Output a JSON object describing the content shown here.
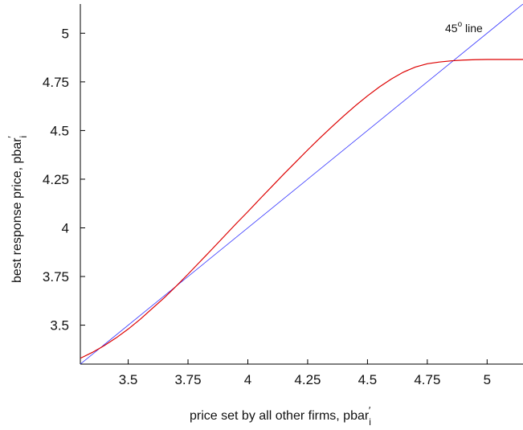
{
  "chart_data": {
    "type": "line",
    "xlabel": {
      "main": "price set by all other firms, pbar",
      "sub": "i",
      "sup": "′"
    },
    "ylabel": {
      "main": "best response price, pbar",
      "sub": "i",
      "sup": "′"
    },
    "xlim": [
      3.3,
      5.15
    ],
    "ylim": [
      3.3,
      5.15
    ],
    "x_ticks": [
      3.5,
      3.75,
      4,
      4.25,
      4.5,
      4.75,
      5
    ],
    "x_tick_labels": [
      "3.5",
      "3.75",
      "4",
      "4.25",
      "4.5",
      "4.75",
      "5"
    ],
    "y_ticks": [
      3.5,
      3.75,
      4,
      4.25,
      4.5,
      4.75,
      5
    ],
    "y_tick_labels": [
      "3.5",
      "3.75",
      "4",
      "4.25",
      "4.5",
      "4.75",
      "5"
    ],
    "grid": false,
    "annotation": {
      "base": "45",
      "sup": "o",
      "rest": " line"
    },
    "series": [
      {
        "color": "#3333ff",
        "x": [
          3.3,
          5.15
        ],
        "y": [
          3.3,
          5.15
        ]
      },
      {
        "color": "#dd0000",
        "x": [
          3.3,
          3.35,
          3.4,
          3.45,
          3.5,
          3.55,
          3.6,
          3.65,
          3.7,
          3.75,
          3.8,
          3.85,
          3.9,
          3.95,
          4.0,
          4.05,
          4.1,
          4.15,
          4.2,
          4.25,
          4.3,
          4.35,
          4.4,
          4.45,
          4.5,
          4.55,
          4.6,
          4.65,
          4.7,
          4.75,
          4.8,
          4.85,
          4.9,
          4.95,
          5.0,
          5.05,
          5.1,
          5.15
        ],
        "y": [
          3.33,
          3.36,
          3.395,
          3.435,
          3.48,
          3.53,
          3.585,
          3.64,
          3.7,
          3.762,
          3.826,
          3.89,
          3.955,
          4.02,
          4.083,
          4.148,
          4.212,
          4.276,
          4.338,
          4.4,
          4.46,
          4.518,
          4.574,
          4.628,
          4.678,
          4.724,
          4.765,
          4.8,
          4.826,
          4.843,
          4.852,
          4.858,
          4.862,
          4.864,
          4.865,
          4.865,
          4.865,
          4.865
        ]
      }
    ]
  }
}
